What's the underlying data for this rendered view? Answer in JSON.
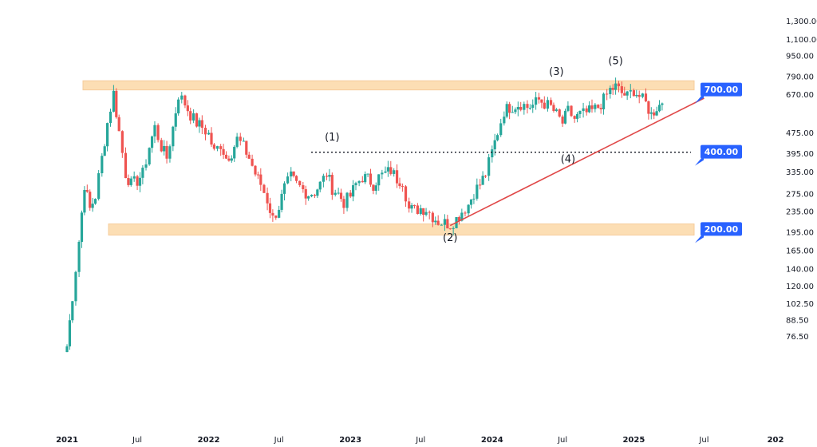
{
  "chart_data": {
    "type": "candlestick",
    "scale": "log",
    "grid": false,
    "legend": "none",
    "colors": {
      "up": "#26a69a",
      "down": "#ef5350",
      "zone": "#fcd9a8",
      "trend": "#e04848",
      "badge": "#2962ff",
      "text": "#131722"
    },
    "y_ticks": [
      "1,300.00",
      "1,100.00",
      "950.00",
      "790.00",
      "670.00",
      "475.00",
      "395.00",
      "335.00",
      "275.00",
      "235.00",
      "195.00",
      "165.00",
      "140.00",
      "120.00",
      "102.50",
      "88.50",
      "76.50"
    ],
    "y_tick_values": [
      1300,
      1100,
      950,
      790,
      670,
      475,
      395,
      335,
      275,
      235,
      195,
      165,
      140,
      120,
      102.5,
      88.5,
      76.5
    ],
    "x_ticks": [
      "2021",
      "Jul",
      "2022",
      "Jul",
      "2023",
      "Jul",
      "2024",
      "Jul",
      "2025",
      "Jul",
      "202"
    ],
    "x_tick_dates": [
      "2021-01-01",
      "2021-07-01",
      "2022-01-01",
      "2022-07-01",
      "2023-01-01",
      "2023-07-01",
      "2024-01-01",
      "2024-07-01",
      "2025-01-01",
      "2025-07-01",
      "2026-01-01"
    ],
    "x_year_labels": [
      "2021",
      "2022",
      "2023",
      "2024",
      "2025",
      "202"
    ],
    "weekly_closes": [
      {
        "date": "2021-01-01",
        "close": 70
      },
      {
        "date": "2021-01-15",
        "close": 110
      },
      {
        "date": "2021-02-01",
        "close": 180
      },
      {
        "date": "2021-02-15",
        "close": 300
      },
      {
        "date": "2021-03-01",
        "close": 240
      },
      {
        "date": "2021-03-15",
        "close": 270
      },
      {
        "date": "2021-04-01",
        "close": 380
      },
      {
        "date": "2021-04-15",
        "close": 520
      },
      {
        "date": "2021-05-01",
        "close": 680
      },
      {
        "date": "2021-05-15",
        "close": 480
      },
      {
        "date": "2021-06-01",
        "close": 330
      },
      {
        "date": "2021-06-15",
        "close": 300
      },
      {
        "date": "2021-07-01",
        "close": 310
      },
      {
        "date": "2021-07-15",
        "close": 330
      },
      {
        "date": "2021-08-01",
        "close": 420
      },
      {
        "date": "2021-08-15",
        "close": 500
      },
      {
        "date": "2021-09-01",
        "close": 420
      },
      {
        "date": "2021-09-15",
        "close": 380
      },
      {
        "date": "2021-10-01",
        "close": 500
      },
      {
        "date": "2021-10-15",
        "close": 670
      },
      {
        "date": "2021-11-01",
        "close": 620
      },
      {
        "date": "2021-11-15",
        "close": 560
      },
      {
        "date": "2021-12-01",
        "close": 520
      },
      {
        "date": "2021-12-15",
        "close": 500
      },
      {
        "date": "2022-01-01",
        "close": 470
      },
      {
        "date": "2022-01-15",
        "close": 400
      },
      {
        "date": "2022-02-01",
        "close": 430
      },
      {
        "date": "2022-02-15",
        "close": 380
      },
      {
        "date": "2022-03-01",
        "close": 400
      },
      {
        "date": "2022-03-15",
        "close": 450
      },
      {
        "date": "2022-04-01",
        "close": 420
      },
      {
        "date": "2022-04-15",
        "close": 380
      },
      {
        "date": "2022-05-01",
        "close": 330
      },
      {
        "date": "2022-05-15",
        "close": 300
      },
      {
        "date": "2022-06-01",
        "close": 260
      },
      {
        "date": "2022-06-15",
        "close": 220
      },
      {
        "date": "2022-07-01",
        "close": 245
      },
      {
        "date": "2022-07-15",
        "close": 290
      },
      {
        "date": "2022-08-01",
        "close": 320
      },
      {
        "date": "2022-08-15",
        "close": 300
      },
      {
        "date": "2022-09-01",
        "close": 285
      },
      {
        "date": "2022-09-15",
        "close": 275
      },
      {
        "date": "2022-10-01",
        "close": 280
      },
      {
        "date": "2022-10-15",
        "close": 300
      },
      {
        "date": "2022-11-01",
        "close": 330
      },
      {
        "date": "2022-11-15",
        "close": 290
      },
      {
        "date": "2022-12-01",
        "close": 275
      },
      {
        "date": "2022-12-15",
        "close": 255
      },
      {
        "date": "2023-01-01",
        "close": 270
      },
      {
        "date": "2023-01-15",
        "close": 300
      },
      {
        "date": "2023-02-01",
        "close": 320
      },
      {
        "date": "2023-02-15",
        "close": 315
      },
      {
        "date": "2023-03-01",
        "close": 300
      },
      {
        "date": "2023-03-15",
        "close": 320
      },
      {
        "date": "2023-04-01",
        "close": 330
      },
      {
        "date": "2023-04-15",
        "close": 340
      },
      {
        "date": "2023-05-01",
        "close": 315
      },
      {
        "date": "2023-05-15",
        "close": 310
      },
      {
        "date": "2023-06-01",
        "close": 240
      },
      {
        "date": "2023-06-15",
        "close": 238
      },
      {
        "date": "2023-07-01",
        "close": 242
      },
      {
        "date": "2023-07-15",
        "close": 240
      },
      {
        "date": "2023-08-01",
        "close": 225
      },
      {
        "date": "2023-08-15",
        "close": 215
      },
      {
        "date": "2023-09-01",
        "close": 212
      },
      {
        "date": "2023-09-15",
        "close": 210
      },
      {
        "date": "2023-10-01",
        "close": 220
      },
      {
        "date": "2023-10-15",
        "close": 235
      },
      {
        "date": "2023-11-01",
        "close": 250
      },
      {
        "date": "2023-11-15",
        "close": 280
      },
      {
        "date": "2023-12-01",
        "close": 300
      },
      {
        "date": "2023-12-15",
        "close": 330
      },
      {
        "date": "2024-01-01",
        "close": 400
      },
      {
        "date": "2024-01-15",
        "close": 480
      },
      {
        "date": "2024-02-01",
        "close": 580
      },
      {
        "date": "2024-02-15",
        "close": 600
      },
      {
        "date": "2024-03-01",
        "close": 610
      },
      {
        "date": "2024-03-15",
        "close": 620
      },
      {
        "date": "2024-04-01",
        "close": 600
      },
      {
        "date": "2024-04-15",
        "close": 610
      },
      {
        "date": "2024-05-01",
        "close": 640
      },
      {
        "date": "2024-05-15",
        "close": 620
      },
      {
        "date": "2024-06-01",
        "close": 600
      },
      {
        "date": "2024-06-15",
        "close": 560
      },
      {
        "date": "2024-07-01",
        "close": 520
      },
      {
        "date": "2024-07-15",
        "close": 580
      },
      {
        "date": "2024-08-01",
        "close": 540
      },
      {
        "date": "2024-08-15",
        "close": 560
      },
      {
        "date": "2024-09-01",
        "close": 570
      },
      {
        "date": "2024-09-15",
        "close": 580
      },
      {
        "date": "2024-10-01",
        "close": 600
      },
      {
        "date": "2024-10-15",
        "close": 640
      },
      {
        "date": "2024-11-01",
        "close": 700
      },
      {
        "date": "2024-11-15",
        "close": 720
      },
      {
        "date": "2024-12-01",
        "close": 680
      },
      {
        "date": "2024-12-15",
        "close": 660
      },
      {
        "date": "2025-01-01",
        "close": 700
      },
      {
        "date": "2025-01-15",
        "close": 660
      },
      {
        "date": "2025-02-01",
        "close": 620
      },
      {
        "date": "2025-02-15",
        "close": 560
      },
      {
        "date": "2025-03-01",
        "close": 600
      },
      {
        "date": "2025-03-15",
        "close": 620
      }
    ],
    "resistance_zone": [
      700,
      760
    ],
    "support_zone": [
      190,
      210
    ],
    "levels": {
      "middle": 400
    },
    "trendline": [
      {
        "date": "2023-09-15",
        "price": 207
      },
      {
        "date": "2025-07-01",
        "price": 650
      }
    ],
    "price_labels": [
      "700.00",
      "400.00",
      "200.00"
    ],
    "price_label_values": [
      700,
      400,
      200
    ],
    "wave_labels": [
      {
        "text": "(1)",
        "date": "2022-11-15",
        "price": 445
      },
      {
        "text": "(2)",
        "date": "2023-09-15",
        "price": 180
      },
      {
        "text": "(3)",
        "date": "2024-06-15",
        "price": 800
      },
      {
        "text": "(4)",
        "date": "2024-07-15",
        "price": 365
      },
      {
        "text": "(5)",
        "date": "2024-11-15",
        "price": 880
      }
    ]
  }
}
